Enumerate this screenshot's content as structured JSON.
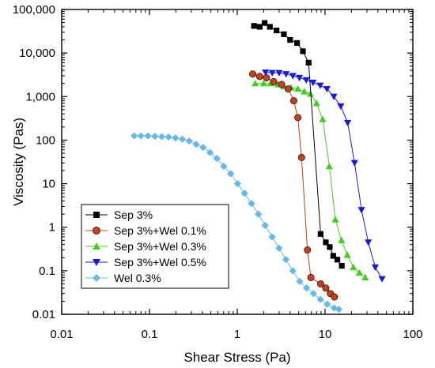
{
  "chart_data": {
    "type": "line",
    "xlabel": "Shear Stress (Pa)",
    "ylabel": "Viscosity (Pas)",
    "x_scale": "log",
    "y_scale": "log",
    "xlim": [
      0.01,
      100
    ],
    "ylim": [
      0.01,
      100000
    ],
    "x_ticks": [
      {
        "value": 0.01,
        "label": "0.01"
      },
      {
        "value": 0.1,
        "label": "0.1"
      },
      {
        "value": 1,
        "label": "1"
      },
      {
        "value": 10,
        "label": "10"
      },
      {
        "value": 100,
        "label": "100"
      }
    ],
    "y_ticks": [
      {
        "value": 0.01,
        "label": "0.01"
      },
      {
        "value": 0.1,
        "label": "0.1"
      },
      {
        "value": 1,
        "label": "1"
      },
      {
        "value": 10,
        "label": "10"
      },
      {
        "value": 100,
        "label": "100"
      },
      {
        "value": 1000,
        "label": "1,000"
      },
      {
        "value": 10000,
        "label": "10,000"
      },
      {
        "value": 100000,
        "label": "100,000"
      }
    ],
    "grid": false,
    "legend_position": "bottom-left",
    "series": [
      {
        "name": "Sep 3%",
        "color": "#000000",
        "marker": "square",
        "x": [
          1.55,
          1.8,
          2.05,
          2.35,
          2.8,
          3.4,
          4.0,
          4.8,
          5.6,
          6.5,
          8.9,
          10.2,
          11.3,
          12.4,
          13.8,
          15.5
        ],
        "y": [
          42000,
          40000,
          49000,
          40000,
          33000,
          27000,
          20000,
          17000,
          11000,
          6000,
          0.7,
          0.45,
          0.35,
          0.22,
          0.18,
          0.13
        ]
      },
      {
        "name": "Sep 3%+Wel 0.1%",
        "color": "#c0401f",
        "marker": "circle",
        "x": [
          1.5,
          1.8,
          2.15,
          2.6,
          3.2,
          3.8,
          4.4,
          4.9,
          5.4,
          6.3,
          6.9,
          8.9,
          10.2,
          11.5,
          12.8
        ],
        "y": [
          3300,
          2900,
          2700,
          2200,
          1900,
          1500,
          800,
          330,
          40,
          0.3,
          0.07,
          0.05,
          0.04,
          0.03,
          0.025
        ]
      },
      {
        "name": "Sep 3%+Wel 0.3%",
        "color": "#44cc22",
        "marker": "triangle-up",
        "x": [
          1.6,
          2.0,
          2.4,
          2.9,
          3.4,
          4.1,
          4.9,
          5.8,
          6.8,
          8.0,
          9.4,
          11.2,
          13.1,
          15.4,
          17.9,
          21.0,
          24.6,
          28.7
        ],
        "y": [
          2000,
          2000,
          2000,
          1900,
          1700,
          1600,
          1500,
          1300,
          1150,
          700,
          300,
          25,
          1.5,
          0.5,
          0.23,
          0.12,
          0.09,
          0.07
        ]
      },
      {
        "name": "Sep 3%+Wel 0.5%",
        "color": "#1a1ad8",
        "marker": "triangle-down",
        "x": [
          2.1,
          2.5,
          3.0,
          3.6,
          4.3,
          5.1,
          6.1,
          7.3,
          8.8,
          10.5,
          12.6,
          15.1,
          18.1,
          21.7,
          26.0,
          31.1,
          37.3,
          44.6
        ],
        "y": [
          3600,
          3500,
          3500,
          3300,
          3000,
          2700,
          2400,
          2100,
          1800,
          1500,
          1000,
          600,
          250,
          30,
          2.5,
          0.45,
          0.12,
          0.065
        ]
      },
      {
        "name": "Wel 0.3%",
        "color": "#66b8e8",
        "marker": "diamond",
        "x": [
          0.067,
          0.08,
          0.096,
          0.115,
          0.138,
          0.165,
          0.198,
          0.237,
          0.284,
          0.34,
          0.408,
          0.489,
          0.586,
          0.702,
          0.841,
          1.008,
          1.21,
          1.45,
          1.74,
          2.08,
          2.49,
          2.99,
          3.58,
          4.29,
          5.14,
          6.16,
          7.38,
          8.85,
          10.6,
          12.7,
          14.4
        ],
        "y": [
          125,
          125,
          125,
          122,
          120,
          118,
          112,
          105,
          95,
          80,
          68,
          52,
          38,
          25,
          17,
          10,
          6,
          3.5,
          2,
          1.1,
          0.6,
          0.33,
          0.18,
          0.1,
          0.057,
          0.04,
          0.03,
          0.022,
          0.017,
          0.014,
          0.013
        ]
      }
    ]
  }
}
